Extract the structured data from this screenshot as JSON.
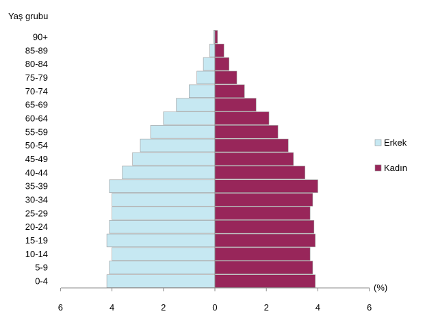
{
  "chart_data": {
    "type": "bar",
    "orientation": "horizontal",
    "title": "",
    "ylabel": "Yaş grubu",
    "xlabel": "(%)",
    "categories": [
      "0-4",
      "5-9",
      "10-14",
      "15-19",
      "20-24",
      "25-29",
      "30-34",
      "35-39",
      "40-44",
      "45-49",
      "50-54",
      "55-59",
      "60-64",
      "65-69",
      "70-74",
      "75-79",
      "80-84",
      "85-89",
      "90+"
    ],
    "series": [
      {
        "name": "Erkek",
        "color": "#c6e8f2",
        "side": "left",
        "values": [
          4.2,
          4.1,
          4.0,
          4.2,
          4.1,
          4.0,
          4.0,
          4.1,
          3.6,
          3.2,
          2.9,
          2.5,
          2.0,
          1.5,
          1.0,
          0.7,
          0.45,
          0.2,
          0.05
        ]
      },
      {
        "name": "Kadın",
        "color": "#98265a",
        "side": "right",
        "values": [
          3.9,
          3.8,
          3.7,
          3.9,
          3.85,
          3.7,
          3.8,
          4.0,
          3.5,
          3.05,
          2.85,
          2.45,
          2.1,
          1.6,
          1.15,
          0.85,
          0.55,
          0.35,
          0.1
        ]
      }
    ],
    "xlim": [
      -6,
      6
    ],
    "xticks": [
      -6,
      -4,
      -2,
      0,
      2,
      4,
      6
    ],
    "xtick_labels": [
      "6",
      "4",
      "2",
      "0",
      "2",
      "4",
      "6"
    ],
    "grid": false,
    "legend_position": "right"
  }
}
